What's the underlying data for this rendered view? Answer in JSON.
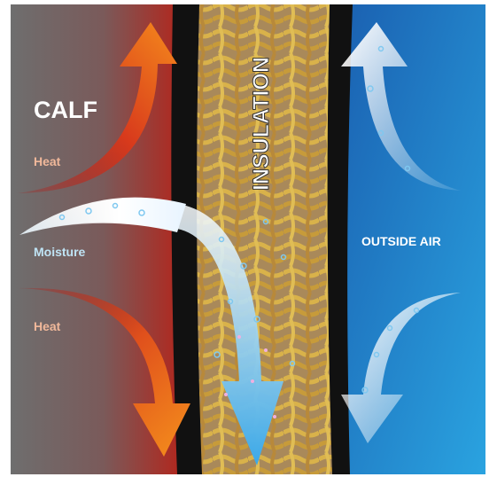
{
  "left_panel": {
    "title": "CALF",
    "labels": [
      "Heat",
      "Moisture",
      "Heat"
    ]
  },
  "middle_panel": {
    "title": "INSULATION"
  },
  "right_panel": {
    "title": "OUTSIDE AIR"
  }
}
